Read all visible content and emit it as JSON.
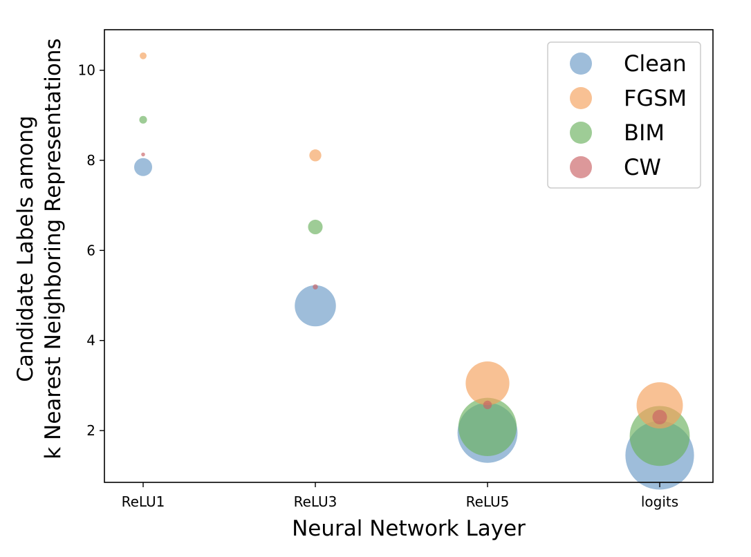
{
  "chart_data": {
    "type": "scatter",
    "xlabel": "Neural Network Layer",
    "ylabel_lines": [
      "Candidate Labels among",
      "k Nearest Neighboring Representations"
    ],
    "categories": [
      "ReLU1",
      "ReLU3",
      "ReLU5",
      "logits"
    ],
    "ylim": [
      0.85,
      10.9
    ],
    "yticks": [
      2,
      4,
      6,
      8,
      10
    ],
    "grid": false,
    "legend_position": "top-right",
    "marker_size_encoding": "bubble area varies per point",
    "series": [
      {
        "name": "Clean",
        "color": "#6a9ac6",
        "values": [
          7.85,
          4.77,
          1.95,
          1.45
        ],
        "bubble_size": [
          0.21,
          0.48,
          0.7,
          0.8
        ]
      },
      {
        "name": "FGSM",
        "color": "#f5a05a",
        "values": [
          10.32,
          8.11,
          3.05,
          2.56
        ],
        "bubble_size": [
          0.08,
          0.14,
          0.51,
          0.54
        ]
      },
      {
        "name": "BIM",
        "color": "#6ab05e",
        "values": [
          8.9,
          6.52,
          2.08,
          1.88
        ],
        "bubble_size": [
          0.09,
          0.17,
          0.68,
          0.7
        ]
      },
      {
        "name": "CW",
        "color": "#c96164",
        "values": [
          8.13,
          5.19,
          2.57,
          2.3
        ],
        "bubble_size": [
          0.045,
          0.06,
          0.1,
          0.17
        ]
      }
    ]
  }
}
